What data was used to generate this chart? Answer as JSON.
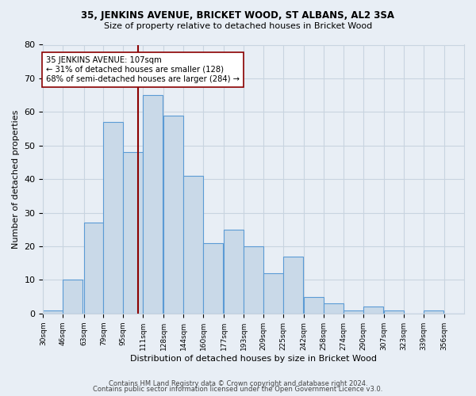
{
  "title1": "35, JENKINS AVENUE, BRICKET WOOD, ST ALBANS, AL2 3SA",
  "title2": "Size of property relative to detached houses in Bricket Wood",
  "xlabel": "Distribution of detached houses by size in Bricket Wood",
  "ylabel": "Number of detached properties",
  "bar_labels": [
    "30sqm",
    "46sqm",
    "63sqm",
    "79sqm",
    "95sqm",
    "111sqm",
    "128sqm",
    "144sqm",
    "160sqm",
    "177sqm",
    "193sqm",
    "209sqm",
    "225sqm",
    "242sqm",
    "258sqm",
    "274sqm",
    "290sqm",
    "307sqm",
    "323sqm",
    "339sqm",
    "356sqm"
  ],
  "bar_values": [
    1,
    10,
    27,
    57,
    48,
    65,
    59,
    41,
    21,
    25,
    20,
    12,
    17,
    5,
    3,
    1,
    2,
    1,
    0,
    1,
    0
  ],
  "bar_left_edges": [
    30,
    46,
    63,
    79,
    95,
    111,
    128,
    144,
    160,
    177,
    193,
    209,
    225,
    242,
    258,
    274,
    290,
    307,
    323,
    339,
    356
  ],
  "bin_width": 16,
  "bar_color": "#c9d9e8",
  "bar_edge_color": "#5b9bd5",
  "property_size": 107,
  "property_label": "35 JENKINS AVENUE: 107sqm",
  "annotation_line1": "← 31% of detached houses are smaller (128)",
  "annotation_line2": "68% of semi-detached houses are larger (284) →",
  "vline_color": "#8b0000",
  "annotation_box_facecolor": "#ffffff",
  "annotation_box_edgecolor": "#8b0000",
  "ylim": [
    0,
    80
  ],
  "yticks": [
    0,
    10,
    20,
    30,
    40,
    50,
    60,
    70,
    80
  ],
  "grid_color": "#c8d4e0",
  "bg_color": "#e8eef5",
  "footer1": "Contains HM Land Registry data © Crown copyright and database right 2024.",
  "footer2": "Contains public sector information licensed under the Open Government Licence v3.0."
}
